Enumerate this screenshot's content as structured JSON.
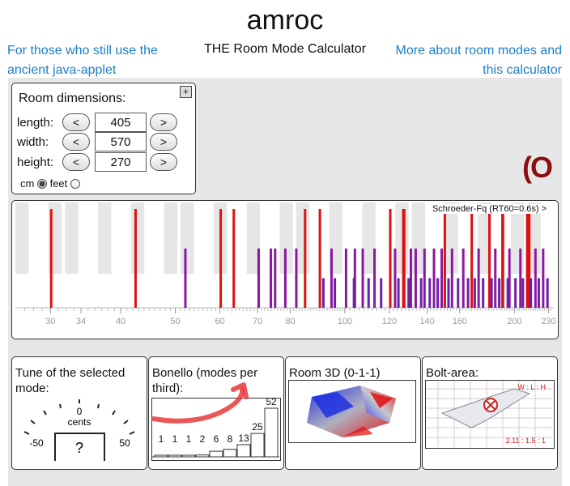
{
  "page": {
    "title": "amroc",
    "subtitle": "THE Room Mode Calculator",
    "link_left": "For those who still use the ancient java-applet",
    "link_right": "More about room modes and this calculator"
  },
  "dimensions": {
    "heading": "Room dimensions:",
    "plus": "+",
    "rows": [
      {
        "label": "length:",
        "value": "405"
      },
      {
        "label": "width:",
        "value": "570"
      },
      {
        "label": "height:",
        "value": "270"
      }
    ],
    "dec": "<",
    "inc": ">",
    "unit_cm": "cm",
    "unit_feet": "feet",
    "selected_unit": "cm"
  },
  "spinner": "(O",
  "chart_data": {
    "type": "bar",
    "title": "",
    "xscale": "log",
    "xlim": [
      26,
      235
    ],
    "x_ticks": [
      30,
      34,
      40,
      50,
      60,
      70,
      80,
      100,
      120,
      140,
      160,
      200,
      230
    ],
    "schroeder_label": "Schroeder-Fq (RT60=0.6s) >",
    "series": [
      {
        "kind": "axial",
        "color": "#e01010",
        "x": [
          30.1,
          42.5,
          60.2,
          63.5,
          85.0,
          90.3,
          120.4,
          127.0,
          127.5,
          150.5,
          168.0,
          180.6,
          190.5,
          190.9,
          210.8,
          212.6
        ],
        "values": [
          1,
          1,
          1,
          1,
          1,
          1,
          1,
          1,
          1,
          1,
          1,
          1,
          1,
          1,
          1,
          1
        ]
      },
      {
        "kind": "tangential",
        "color": "#8a18a0",
        "x": [
          52.1,
          70.3,
          73.9,
          75.2,
          78.4,
          82.0,
          94.7,
          100.5,
          104.2,
          107.6,
          112.9,
          122.8,
          131.0,
          133.6,
          138.5,
          144.0,
          148.6,
          155.0,
          162.3,
          172.8,
          185.0,
          196.0,
          205.0,
          218.0,
          225.0
        ],
        "values": [
          0.6,
          0.6,
          0.6,
          0.6,
          0.6,
          0.6,
          0.6,
          0.6,
          0.6,
          0.6,
          0.6,
          0.6,
          0.6,
          0.6,
          0.6,
          0.6,
          0.6,
          0.6,
          0.6,
          0.6,
          0.6,
          0.6,
          0.6,
          0.6,
          0.6
        ]
      },
      {
        "kind": "oblique",
        "color": "#6a20a8",
        "x": [
          91.6,
          96.0,
          103.8,
          110.2,
          116.0,
          124.5,
          129.8,
          136.6,
          141.5,
          146.2,
          152.8,
          158.9,
          165.5,
          170.1,
          176.0,
          182.2,
          188.0,
          194.7,
          200.9,
          207.1,
          214.0,
          221.0,
          229.0
        ],
        "values": [
          0.3,
          0.3,
          0.3,
          0.3,
          0.3,
          0.3,
          0.3,
          0.3,
          0.3,
          0.3,
          0.3,
          0.3,
          0.3,
          0.3,
          0.3,
          0.3,
          0.3,
          0.3,
          0.3,
          0.3,
          0.3,
          0.3,
          0.3
        ]
      }
    ]
  },
  "tune": {
    "heading": "Tune of the selected mode:",
    "center": "0",
    "unit": "cents",
    "left": "-50",
    "right": "50",
    "note": "?"
  },
  "bonello": {
    "heading": "Bonello (modes per third):",
    "values": [
      1,
      1,
      1,
      2,
      6,
      8,
      13,
      25,
      52
    ],
    "labels": [
      "1",
      "1",
      "1",
      "2",
      "6",
      "8",
      "13",
      "25",
      "52"
    ]
  },
  "room3d": {
    "heading": "Room 3D (0-1-1)"
  },
  "bolt": {
    "heading": "Bolt-area:",
    "ratio_label": "W : L : H",
    "ratio": "2.11 : 1.5 : 1"
  },
  "colors": {
    "link": "#1a7fc8",
    "axial": "#e01010",
    "tangential": "#8a18a0",
    "oblique": "#6a20a8",
    "spinner": "#8a0f12"
  }
}
